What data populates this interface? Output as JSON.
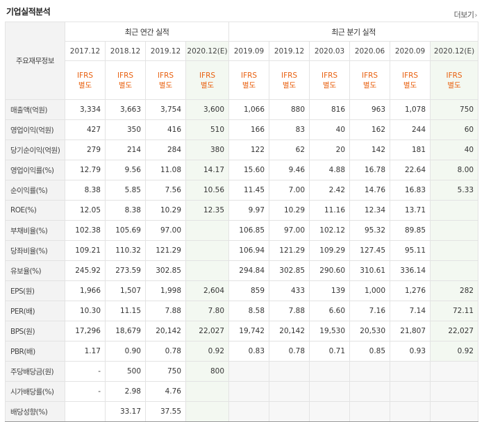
{
  "title": "기업실적분석",
  "more_label": "더보기",
  "row_header": "주요재무정보",
  "groups": {
    "annual": "최근 연간 실적",
    "quarter": "최근 분기 실적"
  },
  "periods": [
    "2017.12",
    "2018.12",
    "2019.12",
    "2020.12(E)",
    "2019.09",
    "2019.12",
    "2020.03",
    "2020.06",
    "2020.09",
    "2020.12(E)"
  ],
  "ifrs_line1": "IFRS",
  "ifrs_line2": "별도",
  "rows": [
    {
      "label": "매출액(억원)",
      "values": [
        "3,334",
        "3,663",
        "3,754",
        "3,600",
        "1,066",
        "880",
        "816",
        "963",
        "1,078",
        "750"
      ]
    },
    {
      "label": "영업이익(억원)",
      "values": [
        "427",
        "350",
        "416",
        "510",
        "166",
        "83",
        "40",
        "162",
        "244",
        "60"
      ]
    },
    {
      "label": "당기순이익(억원)",
      "values": [
        "279",
        "214",
        "284",
        "380",
        "122",
        "62",
        "20",
        "142",
        "181",
        "40"
      ]
    },
    {
      "label": "영업이익률(%)",
      "values": [
        "12.79",
        "9.56",
        "11.08",
        "14.17",
        "15.60",
        "9.46",
        "4.88",
        "16.78",
        "22.64",
        "8.00"
      ]
    },
    {
      "label": "순이익률(%)",
      "values": [
        "8.38",
        "5.85",
        "7.56",
        "10.56",
        "11.45",
        "7.00",
        "2.42",
        "14.76",
        "16.83",
        "5.33"
      ]
    },
    {
      "label": "ROE(%)",
      "values": [
        "12.05",
        "8.38",
        "10.29",
        "12.35",
        "9.97",
        "10.29",
        "11.16",
        "12.34",
        "13.71",
        ""
      ]
    },
    {
      "label": "부채비율(%)",
      "values": [
        "102.38",
        "105.69",
        "97.00",
        "",
        "106.85",
        "97.00",
        "102.12",
        "95.32",
        "89.85",
        ""
      ]
    },
    {
      "label": "당좌비율(%)",
      "values": [
        "109.21",
        "110.32",
        "121.29",
        "",
        "106.94",
        "121.29",
        "109.29",
        "127.45",
        "95.11",
        ""
      ]
    },
    {
      "label": "유보율(%)",
      "values": [
        "245.92",
        "273.59",
        "302.85",
        "",
        "294.84",
        "302.85",
        "290.60",
        "310.61",
        "336.14",
        ""
      ]
    },
    {
      "label": "EPS(원)",
      "values": [
        "1,966",
        "1,507",
        "1,998",
        "2,604",
        "859",
        "433",
        "139",
        "1,000",
        "1,276",
        "282"
      ]
    },
    {
      "label": "PER(배)",
      "values": [
        "10.30",
        "11.15",
        "7.88",
        "7.80",
        "8.58",
        "7.88",
        "6.60",
        "7.16",
        "7.14",
        "72.11"
      ]
    },
    {
      "label": "BPS(원)",
      "values": [
        "17,296",
        "18,679",
        "20,142",
        "22,027",
        "19,742",
        "20,142",
        "19,530",
        "20,530",
        "21,807",
        "22,027"
      ]
    },
    {
      "label": "PBR(배)",
      "values": [
        "1.17",
        "0.90",
        "0.78",
        "0.92",
        "0.83",
        "0.78",
        "0.71",
        "0.85",
        "0.93",
        "0.92"
      ]
    },
    {
      "label": "주당배당금(원)",
      "values": [
        "-",
        "500",
        "750",
        "800",
        "",
        "",
        "",
        "",
        "",
        ""
      ]
    },
    {
      "label": "시가배당률(%)",
      "values": [
        "-",
        "2.98",
        "4.76",
        "",
        "",
        "",
        "",
        "",
        "",
        ""
      ]
    },
    {
      "label": "배당성향(%)",
      "values": [
        "",
        "33.17",
        "37.55",
        "",
        "",
        "",
        "",
        "",
        "",
        ""
      ]
    }
  ]
}
